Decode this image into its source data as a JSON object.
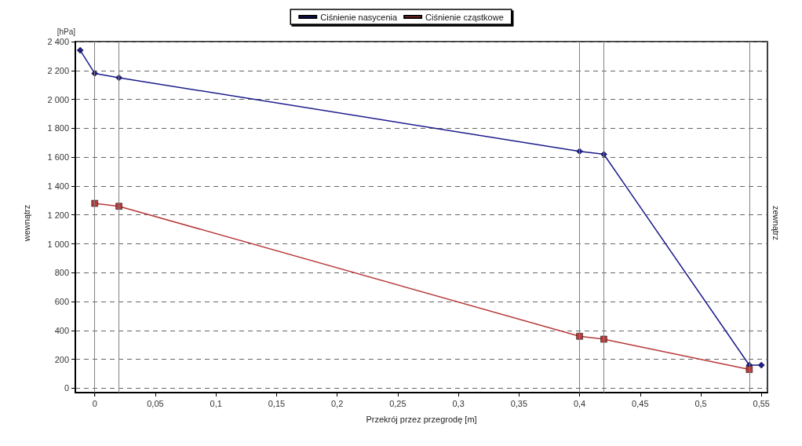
{
  "chart_data": {
    "type": "line",
    "ylabel": "[hPa]",
    "xlabel": "Przekrój przez przegrodę [m]",
    "annotations": [
      "wewnątrz",
      "zewnątrz"
    ],
    "series": [
      {
        "name": "Ciśnienie nasycenia",
        "color": "#1c1c8c",
        "marker": "diamond",
        "x": [
          -0.012,
          0,
          0.02,
          0.4,
          0.42,
          0.54,
          0.55
        ],
        "values": [
          2340,
          2180,
          2150,
          1640,
          1620,
          160,
          160
        ]
      },
      {
        "name": "Ciśnienie cząstkowe",
        "color": "#b83a3a",
        "marker": "square",
        "x": [
          0,
          0.02,
          0.4,
          0.42,
          0.54
        ],
        "values": [
          1280,
          1260,
          360,
          340,
          130
        ]
      }
    ],
    "xlim": [
      -0.016,
      0.555
    ],
    "xticks": [
      0,
      {
        "value": 0.05,
        "label": "0,05"
      },
      {
        "value": 0.1,
        "label": "0,1"
      },
      {
        "value": 0.15,
        "label": "0,15"
      },
      {
        "value": 0.2,
        "label": "0,2"
      },
      {
        "value": 0.25,
        "label": "0,25"
      },
      {
        "value": 0.3,
        "label": "0,3"
      },
      {
        "value": 0.35,
        "label": "0,35"
      },
      {
        "value": 0.4,
        "label": "0,4"
      },
      {
        "value": 0.45,
        "label": "0,45"
      },
      {
        "value": 0.5,
        "label": "0,5"
      },
      {
        "value": 0.55,
        "label": "0,55"
      }
    ],
    "ylim": [
      -30,
      2400
    ],
    "yticks": [
      0,
      200,
      400,
      600,
      800,
      {
        "value": 1000,
        "label": "1 000"
      },
      {
        "value": 1200,
        "label": "1 200"
      },
      {
        "value": 1400,
        "label": "1 400"
      },
      {
        "value": 1600,
        "label": "1 600"
      },
      {
        "value": 1800,
        "label": "1 800"
      },
      {
        "value": 2000,
        "label": "2 000"
      },
      {
        "value": 2200,
        "label": "2 200"
      },
      {
        "value": 2400,
        "label": "2 400"
      }
    ],
    "ref_lines": [
      {
        "axis": "x",
        "value": 0,
        "color": "#808080"
      },
      {
        "axis": "x",
        "value": 0.02,
        "color": "#808080"
      },
      {
        "axis": "x",
        "value": 0.4,
        "color": "#808080"
      },
      {
        "axis": "x",
        "value": 0.42,
        "color": "#808080"
      },
      {
        "axis": "x",
        "value": 0.54,
        "color": "#808080"
      }
    ],
    "grid": "y",
    "legend": "top",
    "line_style": "solid"
  }
}
